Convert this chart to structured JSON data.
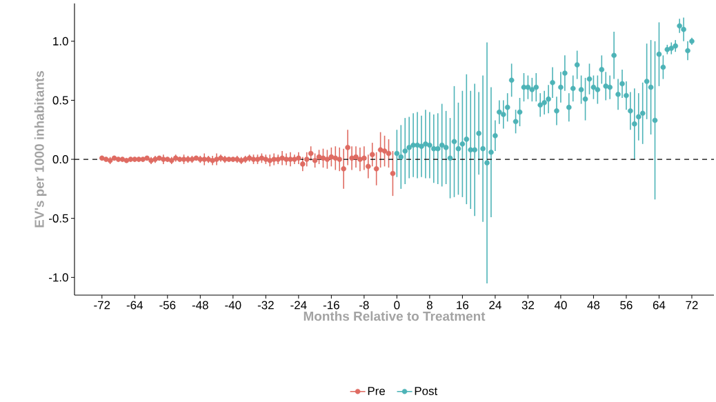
{
  "chart_data": {
    "type": "scatter",
    "xlabel": "Months Relative to Treatment",
    "ylabel": "EV's per 1000 inhabitants",
    "xlim": [
      -78.7,
      77.4
    ],
    "ylim": [
      -1.15,
      1.32
    ],
    "xticks": [
      -72,
      -64,
      -56,
      -48,
      -40,
      -32,
      -24,
      -16,
      -8,
      0,
      8,
      16,
      24,
      32,
      40,
      48,
      56,
      64,
      72
    ],
    "yticks": [
      {
        "value": -1,
        "label": "-1.0"
      },
      {
        "value": -0.5,
        "label": "-0.5"
      },
      {
        "value": 0,
        "label": "0.0"
      },
      {
        "value": 0.5,
        "label": "0.5"
      },
      {
        "value": 1,
        "label": "1.0"
      }
    ],
    "marker": "circle",
    "legend": "bottom",
    "grid": false,
    "ref_lines": [
      {
        "axis": "y",
        "value": 0,
        "line_style": "dashed",
        "color": "#000000"
      }
    ],
    "series": [
      {
        "name": "Pre",
        "color": "#df6b62",
        "x": [
          -72,
          -71,
          -70,
          -69,
          -68,
          -67,
          -66,
          -65,
          -64,
          -63,
          -62,
          -61,
          -60,
          -59,
          -58,
          -57,
          -56,
          -55,
          -54,
          -53,
          -52,
          -51,
          -50,
          -49,
          -48,
          -47,
          -46,
          -45,
          -44,
          -43,
          -42,
          -41,
          -40,
          -39,
          -38,
          -37,
          -36,
          -35,
          -34,
          -33,
          -32,
          -31,
          -30,
          -29,
          -28,
          -27,
          -26,
          -25,
          -24,
          -23,
          -22,
          -21,
          -20,
          -19,
          -18,
          -17,
          -16,
          -15,
          -14,
          -13,
          -12,
          -11,
          -10,
          -9,
          -8,
          -7,
          -6,
          -5,
          -4,
          -3,
          -2,
          -1
        ],
        "values": [
          0.01,
          0.0,
          -0.01,
          0.01,
          0.0,
          0.0,
          -0.01,
          0.0,
          0.0,
          0.0,
          0.0,
          0.01,
          -0.01,
          0.0,
          0.01,
          0.0,
          0.0,
          -0.01,
          0.01,
          0.0,
          0.0,
          0.0,
          0.0,
          0.01,
          0.0,
          0.0,
          0.0,
          -0.01,
          0.0,
          0.01,
          0.0,
          0.0,
          0.0,
          0.0,
          -0.01,
          0.0,
          0.01,
          0.0,
          0.0,
          0.01,
          0.0,
          -0.01,
          0.0,
          0.0,
          0.01,
          0.0,
          0.0,
          0.0,
          0.01,
          -0.04,
          0.0,
          0.05,
          -0.01,
          0.02,
          0.01,
          0.0,
          0.02,
          0.01,
          0.0,
          -0.08,
          0.1,
          0.01,
          0.02,
          0.0,
          0.01,
          -0.06,
          0.04,
          -0.08,
          0.08,
          0.07,
          0.05,
          -0.12
        ],
        "errors": [
          0.02,
          0.02,
          0.03,
          0.02,
          0.02,
          0.02,
          0.02,
          0.02,
          0.02,
          0.02,
          0.02,
          0.02,
          0.03,
          0.03,
          0.02,
          0.04,
          0.02,
          0.03,
          0.03,
          0.02,
          0.04,
          0.03,
          0.03,
          0.02,
          0.03,
          0.05,
          0.03,
          0.04,
          0.05,
          0.03,
          0.03,
          0.02,
          0.02,
          0.03,
          0.03,
          0.03,
          0.03,
          0.04,
          0.04,
          0.04,
          0.04,
          0.05,
          0.05,
          0.04,
          0.06,
          0.05,
          0.06,
          0.04,
          0.05,
          0.06,
          0.06,
          0.06,
          0.06,
          0.06,
          0.08,
          0.08,
          0.08,
          0.1,
          0.1,
          0.17,
          0.15,
          0.1,
          0.09,
          0.1,
          0.1,
          0.1,
          0.1,
          0.14,
          0.15,
          0.13,
          0.12,
          0.19
        ]
      },
      {
        "name": "Post",
        "color": "#4db3b7",
        "x": [
          0,
          1,
          2,
          3,
          4,
          5,
          6,
          7,
          8,
          9,
          10,
          11,
          12,
          13,
          14,
          15,
          16,
          17,
          18,
          19,
          20,
          21,
          22,
          23,
          24,
          25,
          26,
          27,
          28,
          29,
          30,
          31,
          32,
          33,
          34,
          35,
          36,
          37,
          38,
          39,
          40,
          41,
          42,
          43,
          44,
          45,
          46,
          47,
          48,
          49,
          50,
          51,
          52,
          53,
          54,
          55,
          56,
          57,
          58,
          59,
          60,
          61,
          62,
          63,
          64,
          65,
          66,
          67,
          68,
          69,
          70,
          71,
          72
        ],
        "values": [
          0.05,
          0.02,
          0.07,
          0.1,
          0.12,
          0.12,
          0.11,
          0.13,
          0.12,
          0.09,
          0.09,
          0.12,
          0.1,
          0.01,
          0.15,
          0.09,
          0.13,
          0.17,
          0.08,
          0.08,
          0.22,
          0.09,
          -0.03,
          0.06,
          0.2,
          0.4,
          0.38,
          0.44,
          0.67,
          0.32,
          0.4,
          0.61,
          0.61,
          0.59,
          0.61,
          0.46,
          0.48,
          0.51,
          0.65,
          0.41,
          0.61,
          0.73,
          0.44,
          0.6,
          0.8,
          0.59,
          0.51,
          0.68,
          0.61,
          0.59,
          0.76,
          0.62,
          0.61,
          0.88,
          0.55,
          0.64,
          0.54,
          0.41,
          0.3,
          0.36,
          0.39,
          0.66,
          0.61,
          0.33,
          0.89,
          0.78,
          0.93,
          0.94,
          0.96,
          1.13,
          1.1,
          0.92,
          1.0
        ],
        "errors": [
          0.2,
          0.27,
          0.28,
          0.26,
          0.27,
          0.28,
          0.26,
          0.29,
          0.28,
          0.29,
          0.3,
          0.35,
          0.31,
          0.34,
          0.47,
          0.39,
          0.45,
          0.55,
          0.5,
          0.56,
          0.35,
          0.62,
          1.02,
          0.55,
          0.13,
          0.1,
          0.12,
          0.12,
          0.14,
          0.1,
          0.12,
          0.12,
          0.1,
          0.1,
          0.12,
          0.1,
          0.1,
          0.12,
          0.13,
          0.12,
          0.13,
          0.15,
          0.12,
          0.11,
          0.12,
          0.12,
          0.18,
          0.13,
          0.1,
          0.12,
          0.12,
          0.12,
          0.1,
          0.2,
          0.13,
          0.12,
          0.12,
          0.16,
          0.3,
          0.2,
          0.26,
          0.32,
          0.4,
          0.67,
          0.27,
          0.1,
          0.04,
          0.05,
          0.05,
          0.06,
          0.1,
          0.08,
          0.03
        ]
      }
    ]
  }
}
